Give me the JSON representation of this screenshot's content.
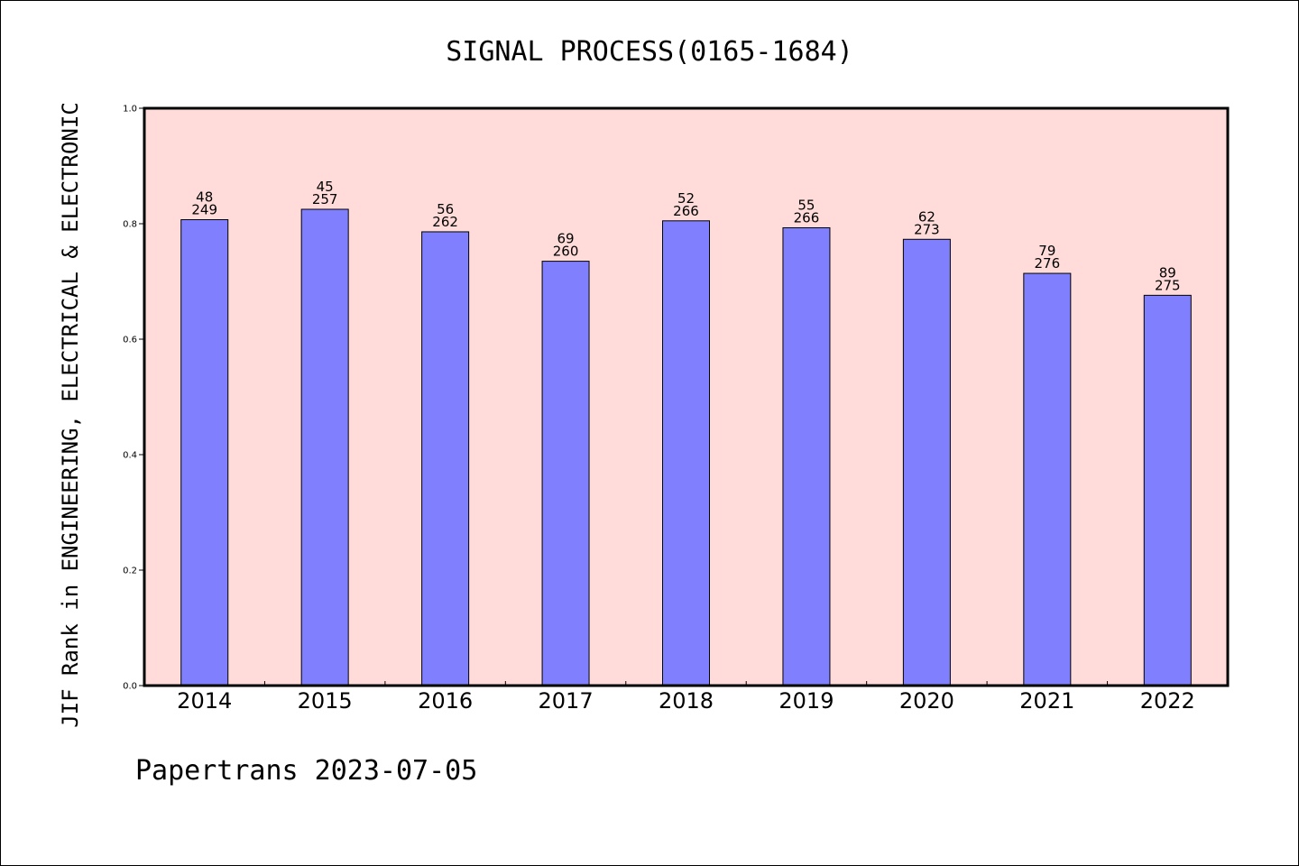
{
  "chart_data": {
    "type": "bar",
    "title": "SIGNAL PROCESS(0165-1684)",
    "ylabel": "JIF Rank in ENGINEERING, ELECTRICAL & ELECTRONIC",
    "xlabel": "",
    "ylim": [
      0,
      1.0
    ],
    "yticks": [
      "0.0",
      "0.2",
      "0.4",
      "0.6",
      "0.8",
      "1.0"
    ],
    "categories": [
      "2014",
      "2015",
      "2016",
      "2017",
      "2018",
      "2019",
      "2020",
      "2021",
      "2022"
    ],
    "values": [
      0.807,
      0.825,
      0.786,
      0.735,
      0.805,
      0.793,
      0.773,
      0.714,
      0.676
    ],
    "rank_labels": [
      "48",
      "45",
      "56",
      "69",
      "52",
      "55",
      "62",
      "79",
      "89"
    ],
    "total_labels": [
      "249",
      "257",
      "262",
      "260",
      "266",
      "266",
      "273",
      "276",
      "275"
    ],
    "colors": {
      "bar": "#8080ff",
      "plot_background": "#ffdbd9",
      "bar_edge": "#000000"
    },
    "grid": false,
    "legend": "none"
  },
  "footer": "Papertrans 2023-07-05"
}
